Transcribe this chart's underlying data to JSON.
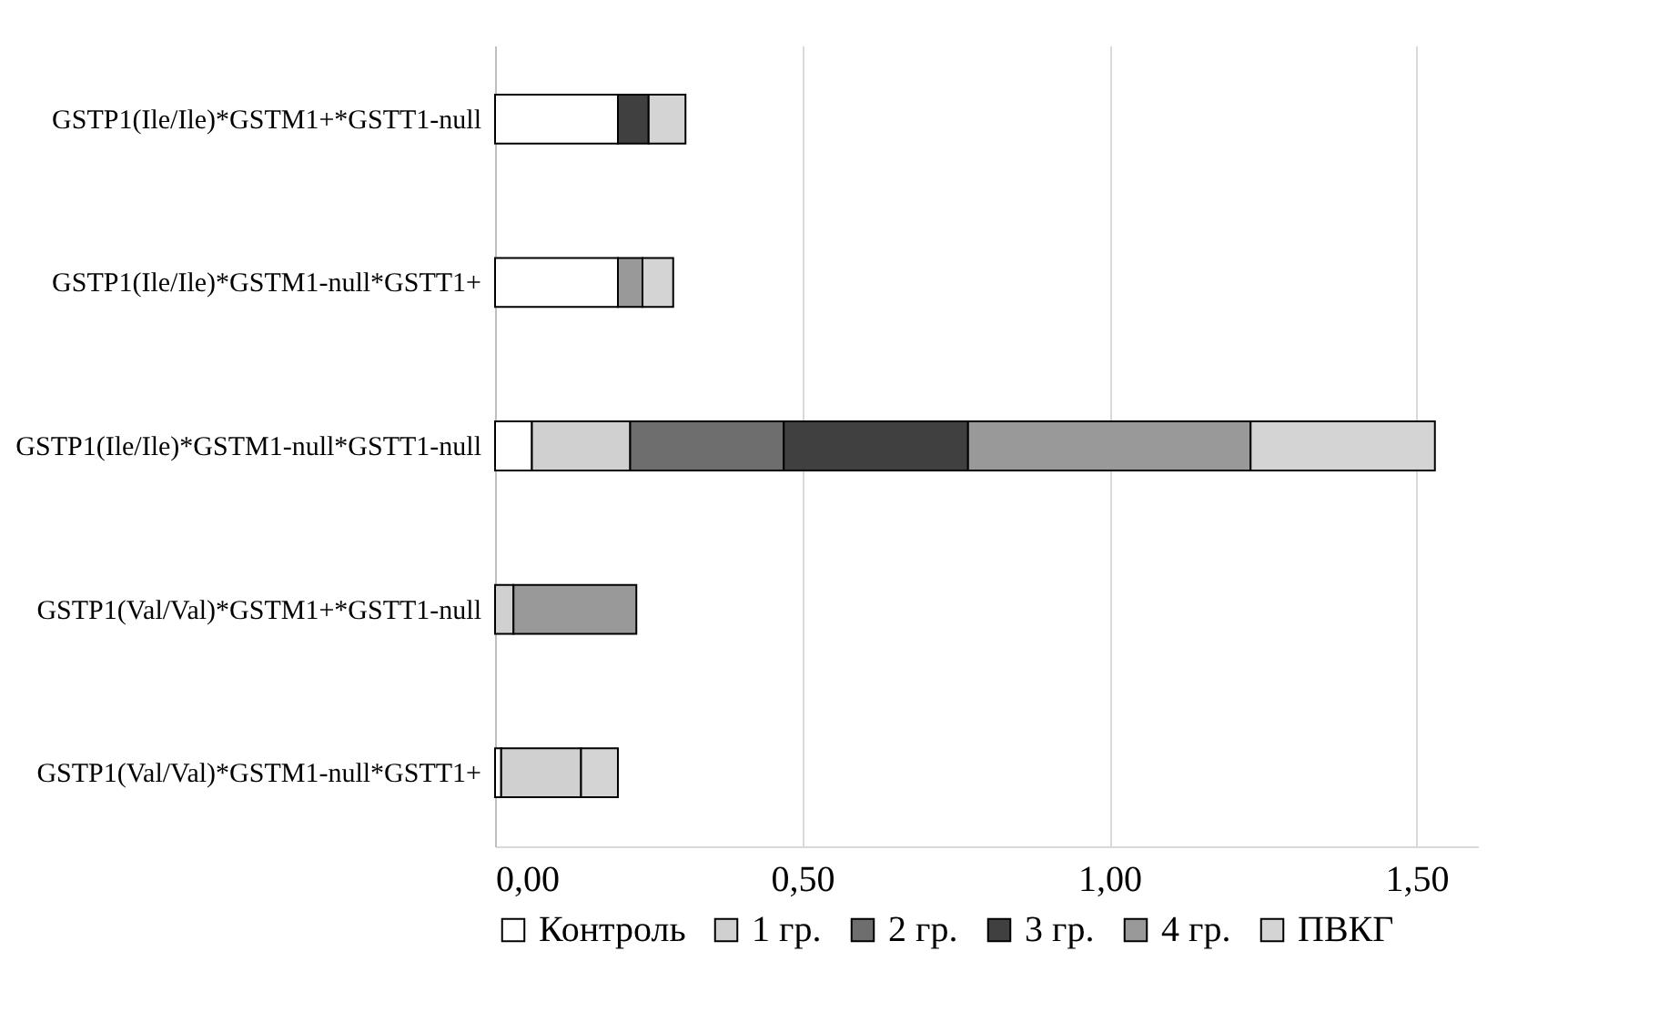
{
  "chart_data": {
    "type": "bar",
    "orientation": "horizontal",
    "stacked": true,
    "categories": [
      "GSTP1(Ile/Ile)*GSTM1+*GSTT1-null",
      "GSTP1(Ile/Ile)*GSTM1-null*GSTT1+",
      "GSTP1(Ile/Ile)*GSTM1-null*GSTT1-null",
      "GSTP1(Val/Val)*GSTM1+*GSTT1-null",
      "GSTP1(Val/Val)*GSTM1-null*GSTT1+"
    ],
    "series": [
      {
        "name": "Контроль",
        "color": "#ffffff",
        "values": [
          0.2,
          0.2,
          0.06,
          null,
          0.01
        ]
      },
      {
        "name": "1 гр.",
        "color": "#d0d0d0",
        "values": [
          null,
          null,
          0.16,
          0.03,
          0.13
        ]
      },
      {
        "name": "2 гр.",
        "color": "#6e6e6e",
        "values": [
          null,
          null,
          0.25,
          null,
          null
        ]
      },
      {
        "name": "3 гр.",
        "color": "#404040",
        "values": [
          0.05,
          null,
          0.3,
          null,
          null
        ]
      },
      {
        "name": "4 гр.",
        "color": "#999999",
        "values": [
          null,
          0.04,
          0.46,
          0.2,
          null
        ]
      },
      {
        "name": "ПВКГ",
        "color": "#d4d4d4",
        "values": [
          0.06,
          0.05,
          0.3,
          null,
          0.06
        ]
      }
    ],
    "xlim": [
      0,
      1.6
    ],
    "xticks": [
      {
        "value": 0,
        "label": "0,00"
      },
      {
        "value": 0.5,
        "label": "0,50"
      },
      {
        "value": 1,
        "label": "1,00"
      },
      {
        "value": 1.5,
        "label": "1,50"
      }
    ],
    "grid": "x",
    "legend": "bottom"
  }
}
